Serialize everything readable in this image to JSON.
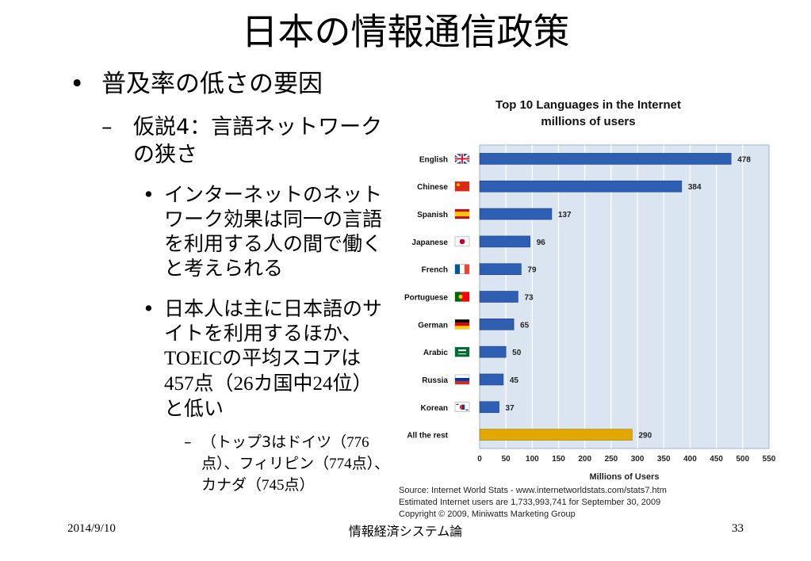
{
  "slide": {
    "title": "日本の情報通信政策",
    "bullet1": "普及率の低さの要因",
    "sub1": "仮説4：言語ネットワークの狭さ",
    "point1": "インターネットのネットワーク効果は同一の言語を利用する人の間で働くと考えられる",
    "point2_pre": "日本人は主に日本語のサイトを利用するほか、",
    "point2_toeic": "TOEIC",
    "point2_mid1": "の平均スコアは",
    "point2_score": "457",
    "point2_mid2": "点（",
    "point2_countries": "26",
    "point2_mid3": "カ国中",
    "point2_rank": "24",
    "point2_post": "位）と低い",
    "subpoint_a": "（トップ3はドイツ（",
    "subpoint_b": "776",
    "subpoint_c": "点）、フィリピン（",
    "subpoint_d": "774",
    "subpoint_e": "点）、カナダ（",
    "subpoint_f": "745",
    "subpoint_g": "点）",
    "bullet_marker": "•",
    "dash_marker": "–"
  },
  "footer": {
    "date": "2014/9/10",
    "center": "情報経済システム論",
    "page": "33"
  },
  "source": {
    "line1": "Source: Internet World Stats - www.internetworldstats.com/stats7.htm",
    "line2": "Estimated Internet users are 1,733,993,741 for September 30, 2009",
    "line3": "Copyright © 2009, Miniwatts Marketing Group"
  },
  "colors": {
    "bar": "#2f5fb3",
    "bar_highlight": "#e0a800",
    "plot_bg": "#dbe5f1",
    "grid": "#ffffff"
  },
  "chart_data": {
    "type": "bar",
    "orientation": "horizontal",
    "title": "Top 10 Languages in the Internet",
    "subtitle": "millions of users",
    "xlabel": "Millions of Users",
    "ylabel": "",
    "xlim": [
      0,
      550
    ],
    "xticks": [
      0,
      50,
      100,
      150,
      200,
      250,
      300,
      350,
      400,
      450,
      500,
      550
    ],
    "grid": true,
    "categories": [
      "English",
      "Chinese",
      "Spanish",
      "Japanese",
      "French",
      "Portuguese",
      "German",
      "Arabic",
      "Russia",
      "Korean",
      "All the rest"
    ],
    "flags": [
      "uk-flag-icon",
      "china-flag-icon",
      "spain-flag-icon",
      "japan-flag-icon",
      "france-flag-icon",
      "portugal-flag-icon",
      "germany-flag-icon",
      "saudi-flag-icon",
      "russia-flag-icon",
      "korea-flag-icon",
      ""
    ],
    "values": [
      478,
      384,
      137,
      96,
      79,
      73,
      65,
      50,
      45,
      37,
      290
    ],
    "highlight_index": 10
  }
}
